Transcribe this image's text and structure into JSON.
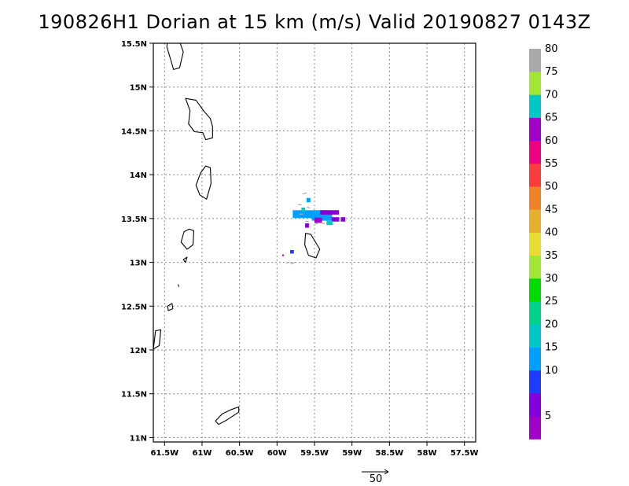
{
  "title": "190826H1 Dorian at 15 km (m/s) Valid 20190827 0143Z",
  "map": {
    "lon_range": [
      -61.65,
      -57.35
    ],
    "lat_range": [
      10.95,
      15.5
    ],
    "x_ticks": [
      {
        "lon": -61.5,
        "label": "61.5W"
      },
      {
        "lon": -61.0,
        "label": "61W"
      },
      {
        "lon": -60.5,
        "label": "60.5W"
      },
      {
        "lon": -60.0,
        "label": "60W"
      },
      {
        "lon": -59.5,
        "label": "59.5W"
      },
      {
        "lon": -59.0,
        "label": "59W"
      },
      {
        "lon": -58.5,
        "label": "58.5W"
      },
      {
        "lon": -58.0,
        "label": "58W"
      },
      {
        "lon": -57.5,
        "label": "57.5W"
      }
    ],
    "y_ticks": [
      {
        "lat": 15.5,
        "label": "15.5N"
      },
      {
        "lat": 15.0,
        "label": "15N"
      },
      {
        "lat": 14.5,
        "label": "14.5N"
      },
      {
        "lat": 14.0,
        "label": "14N"
      },
      {
        "lat": 13.5,
        "label": "13.5N"
      },
      {
        "lat": 13.0,
        "label": "13N"
      },
      {
        "lat": 12.5,
        "label": "12.5N"
      },
      {
        "lat": 12.0,
        "label": "12N"
      },
      {
        "lat": 11.5,
        "label": "11.5N"
      },
      {
        "lat": 11.0,
        "label": "11N"
      }
    ],
    "grid": "dotted",
    "islands": [
      {
        "name": "Dominica",
        "pts": [
          [
            -61.45,
            15.63
          ],
          [
            -61.34,
            15.62
          ],
          [
            -61.25,
            15.4
          ],
          [
            -61.3,
            15.22
          ],
          [
            -61.38,
            15.2
          ],
          [
            -61.42,
            15.32
          ],
          [
            -61.47,
            15.46
          ]
        ]
      },
      {
        "name": "Martinique",
        "pts": [
          [
            -61.22,
            14.87
          ],
          [
            -61.08,
            14.85
          ],
          [
            -60.98,
            14.73
          ],
          [
            -60.89,
            14.64
          ],
          [
            -60.86,
            14.55
          ],
          [
            -60.86,
            14.42
          ],
          [
            -60.95,
            14.4
          ],
          [
            -60.99,
            14.48
          ],
          [
            -61.1,
            14.49
          ],
          [
            -61.18,
            14.58
          ],
          [
            -61.16,
            14.73
          ]
        ]
      },
      {
        "name": "St Lucia",
        "pts": [
          [
            -60.95,
            14.1
          ],
          [
            -60.89,
            14.08
          ],
          [
            -60.88,
            13.9
          ],
          [
            -60.94,
            13.72
          ],
          [
            -61.03,
            13.77
          ],
          [
            -61.08,
            13.88
          ],
          [
            -61.02,
            14.02
          ]
        ]
      },
      {
        "name": "St Vincent",
        "pts": [
          [
            -61.17,
            13.38
          ],
          [
            -61.11,
            13.36
          ],
          [
            -61.12,
            13.2
          ],
          [
            -61.2,
            13.15
          ],
          [
            -61.28,
            13.23
          ],
          [
            -61.24,
            13.35
          ]
        ]
      },
      {
        "name": "Bequia",
        "pts": [
          [
            -61.25,
            13.03
          ],
          [
            -61.2,
            13.06
          ],
          [
            -61.22,
            13.0
          ]
        ]
      },
      {
        "name": "Carriacou",
        "pts": [
          [
            -61.46,
            12.5
          ],
          [
            -61.4,
            12.53
          ],
          [
            -61.39,
            12.47
          ],
          [
            -61.45,
            12.45
          ]
        ]
      },
      {
        "name": "Grenada",
        "pts": [
          [
            -61.62,
            12.22
          ],
          [
            -61.55,
            12.23
          ],
          [
            -61.57,
            12.05
          ],
          [
            -61.65,
            12.01
          ]
        ]
      },
      {
        "name": "Barbados",
        "pts": [
          [
            -59.62,
            13.33
          ],
          [
            -59.55,
            13.32
          ],
          [
            -59.43,
            13.15
          ],
          [
            -59.48,
            13.05
          ],
          [
            -59.58,
            13.08
          ],
          [
            -59.63,
            13.2
          ]
        ]
      },
      {
        "name": "Tobago",
        "pts": [
          [
            -60.51,
            11.35
          ],
          [
            -60.51,
            11.29
          ],
          [
            -60.67,
            11.2
          ],
          [
            -60.78,
            11.15
          ],
          [
            -60.82,
            11.19
          ],
          [
            -60.73,
            11.27
          ],
          [
            -60.61,
            11.32
          ]
        ]
      }
    ],
    "island_marks": [
      [
        -61.32,
        12.75
      ],
      [
        -61.31,
        12.72
      ]
    ],
    "wind_cells": [
      {
        "lon": -59.55,
        "lat": 13.55,
        "w": 0.48,
        "h": 0.09,
        "speed": 17
      },
      {
        "lon": -59.4,
        "lat": 13.52,
        "w": 0.27,
        "h": 0.09,
        "speed": 18
      },
      {
        "lon": -59.3,
        "lat": 13.57,
        "w": 0.25,
        "h": 0.05,
        "speed": 7
      },
      {
        "lon": -59.22,
        "lat": 13.49,
        "w": 0.1,
        "h": 0.05,
        "speed": 8
      },
      {
        "lon": -59.45,
        "lat": 13.48,
        "w": 0.1,
        "h": 0.06,
        "speed": 4
      },
      {
        "lon": -59.12,
        "lat": 13.49,
        "w": 0.06,
        "h": 0.05,
        "speed": 6
      },
      {
        "lon": -59.58,
        "lat": 13.71,
        "w": 0.05,
        "h": 0.05,
        "speed": 16
      },
      {
        "lon": -59.6,
        "lat": 13.42,
        "w": 0.05,
        "h": 0.05,
        "speed": 7
      },
      {
        "lon": -59.65,
        "lat": 13.6,
        "w": 0.05,
        "h": 0.05,
        "speed": 21
      },
      {
        "lon": -59.3,
        "lat": 13.45,
        "w": 0.08,
        "h": 0.05,
        "speed": 22
      },
      {
        "lon": -59.8,
        "lat": 13.12,
        "w": 0.05,
        "h": 0.04,
        "speed": 10
      },
      {
        "lon": -59.92,
        "lat": 13.08,
        "w": 0.02,
        "h": 0.02,
        "speed": 3
      }
    ],
    "wind_vectors": [
      {
        "lon": -59.66,
        "lat": 13.78,
        "u": 8,
        "v": 2
      },
      {
        "lon": -59.72,
        "lat": 13.66,
        "u": 7,
        "v": -1
      },
      {
        "lon": -59.6,
        "lat": 13.63,
        "u": 6,
        "v": -2
      },
      {
        "lon": -59.7,
        "lat": 13.55,
        "u": 7,
        "v": 0
      },
      {
        "lon": -59.5,
        "lat": 13.45,
        "u": 6,
        "v": -2
      },
      {
        "lon": -59.4,
        "lat": 13.44,
        "u": 5,
        "v": 1
      },
      {
        "lon": -59.62,
        "lat": 13.47,
        "u": 6,
        "v": -1
      },
      {
        "lon": -59.88,
        "lat": 12.99,
        "u": 7,
        "v": 2
      },
      {
        "lon": -59.82,
        "lat": 12.98,
        "u": 8,
        "v": 3
      }
    ],
    "vector_color": "#a9a9a9",
    "coast_color": "#000000"
  },
  "reference_vector": {
    "label": "50",
    "value": 50
  },
  "colorbar": {
    "colors": [
      "#a000c8",
      "#8200dc",
      "#1e3cff",
      "#00a0ff",
      "#00c8c8",
      "#00d28c",
      "#00dc00",
      "#a0e632",
      "#e6dc32",
      "#e6af2d",
      "#f08228",
      "#fa3c3c",
      "#f00082",
      "#a000c8",
      "#00c8c8",
      "#a0e632",
      "#aaaaaa"
    ],
    "labels": [
      {
        "index": 1,
        "label": "5"
      },
      {
        "index": 3,
        "label": "10"
      },
      {
        "index": 4,
        "label": "15"
      },
      {
        "index": 5,
        "label": "20"
      },
      {
        "index": 6,
        "label": "25"
      },
      {
        "index": 7,
        "label": "30"
      },
      {
        "index": 8,
        "label": "35"
      },
      {
        "index": 9,
        "label": "40"
      },
      {
        "index": 10,
        "label": "45"
      },
      {
        "index": 11,
        "label": "50"
      },
      {
        "index": 12,
        "label": "55"
      },
      {
        "index": 13,
        "label": "60"
      },
      {
        "index": 14,
        "label": "65"
      },
      {
        "index": 15,
        "label": "70"
      },
      {
        "index": 16,
        "label": "75"
      },
      {
        "index": 17,
        "label": "80"
      }
    ]
  }
}
